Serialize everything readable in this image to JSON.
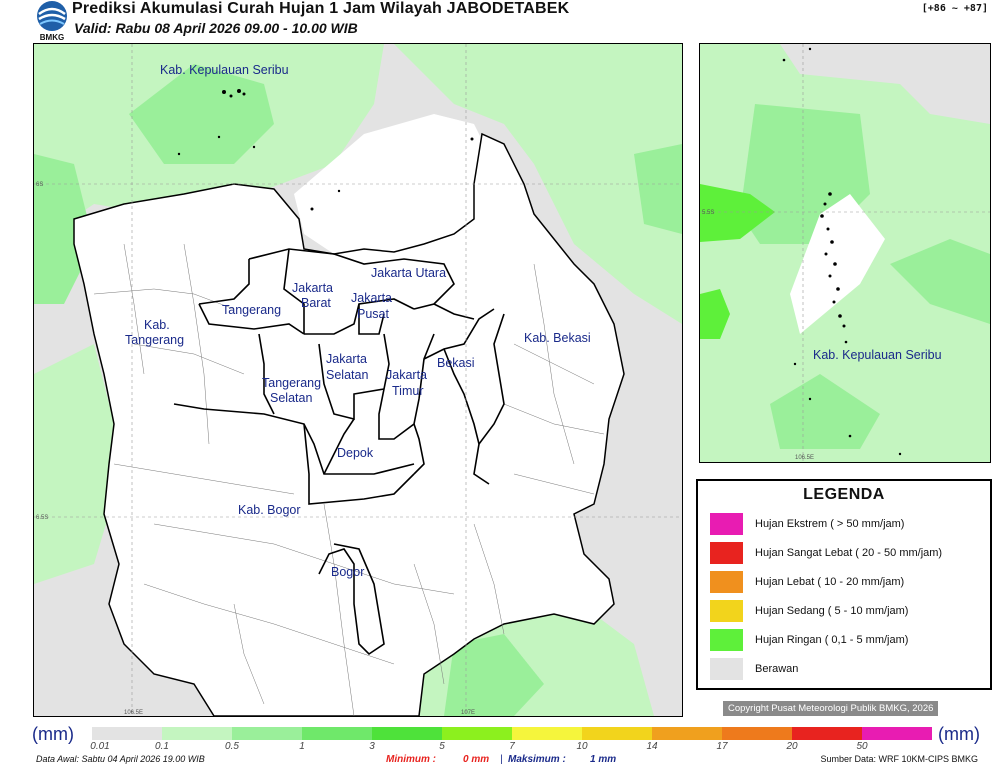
{
  "header": {
    "title": "Prediksi Akumulasi Curah Hujan 1 Jam Wilayah JABODETABEK",
    "valid": "Valid: Rabu 08 April 2026 09.00 - 10.00 WIB",
    "code": "[+86 ~ +87]",
    "logo_text": "BMKG"
  },
  "main_map": {
    "region_labels": [
      "Kab. Kepulauan Seribu",
      "Jakarta Utara",
      "Jakarta",
      "Barat",
      "Jakarta",
      "Pusat",
      "Tangerang",
      "Kab.",
      "Tangerang",
      "Jakarta",
      "Selatan",
      "Jakarta",
      "Timur",
      "Bekasi",
      "Kab. Bekasi",
      "Tangerang",
      "Selatan",
      "Depok",
      "Kab. Bogor",
      "Bogor"
    ],
    "lat_ticks": [
      "6S",
      "6.5S"
    ],
    "lon_ticks": [
      "106.5E",
      "107E"
    ]
  },
  "inset_map": {
    "region_label": "Kab. Kepulauan Seribu",
    "lat_tick": "5.5S",
    "lon_tick": "106.5E"
  },
  "legend": {
    "title": "LEGENDA",
    "items": [
      {
        "label": "Hujan Ekstrem ( > 50 mm/jam)",
        "color": "#e81cb2"
      },
      {
        "label": "Hujan Sangat Lebat ( 20 - 50 mm/jam)",
        "color": "#e8231f"
      },
      {
        "label": "Hujan Lebat ( 10 - 20 mm/jam)",
        "color": "#f0901e"
      },
      {
        "label": "Hujan Sedang ( 5 - 10 mm/jam)",
        "color": "#f2d41c"
      },
      {
        "label": "Hujan Ringan ( 0,1 - 5 mm/jam)",
        "color": "#5ef03a"
      },
      {
        "label": "Berawan",
        "color": "#e3e3e3"
      }
    ]
  },
  "copyright": "Copyright Pusat Meteorologi Publik BMKG, 2026",
  "colorbar": {
    "unit_left": "(mm)",
    "unit_right": "(mm)",
    "labels": [
      "0.01",
      "0.1",
      "0.5",
      "1",
      "3",
      "5",
      "7",
      "10",
      "14",
      "17",
      "20",
      "50"
    ],
    "colors": [
      "#e3e3e3",
      "#c4f5c0",
      "#9aef9a",
      "#6fe86a",
      "#4ee23a",
      "#8cf01e",
      "#f5f53c",
      "#f2d41c",
      "#f0a01e",
      "#ee7a1c",
      "#e8231f",
      "#e81cb2"
    ]
  },
  "footer": {
    "data_awal": "Data Awal: Sabtu 04 April 2026 19.00 WIB",
    "min_label": "Minimum :",
    "min_value": "0 mm",
    "max_label": "Maksimum :",
    "max_value": "1 mm",
    "source": "Sumber Data: WRF 10KM-CIPS BMKG"
  }
}
